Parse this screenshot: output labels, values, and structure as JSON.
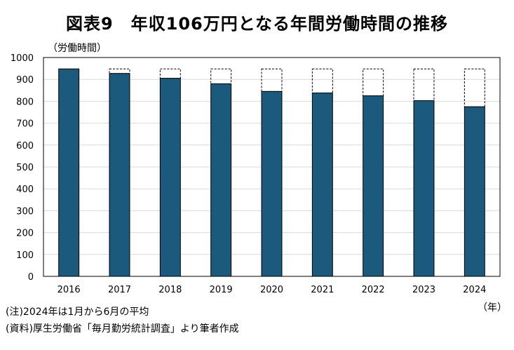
{
  "chart_data": {
    "type": "bar",
    "title": "図表9　年収106万円となる年間労働時間の推移",
    "ylabel": "（労働時間）",
    "xlabel": "（年）",
    "categories": [
      "2016",
      "2017",
      "2018",
      "2019",
      "2020",
      "2021",
      "2022",
      "2023",
      "2024"
    ],
    "series": [
      {
        "values": [
          948,
          927,
          905,
          880,
          845,
          838,
          825,
          803,
          775
        ]
      }
    ],
    "reference_level": 948,
    "reference_style": "dashed outline",
    "ylim": [
      0,
      1000
    ],
    "yticks": [
      0,
      100,
      200,
      300,
      400,
      500,
      600,
      700,
      800,
      900,
      1000
    ],
    "grid": true,
    "legend": "none",
    "colors": {
      "bar": "#1b5a7c",
      "gridline": "#d9d9d9",
      "reference_outline": "#000000"
    }
  },
  "footnotes": {
    "note": "(注)2024年は1月から6月の平均",
    "source": "(資料)厚生労働省「毎月勤労統計調査」より筆者作成"
  }
}
